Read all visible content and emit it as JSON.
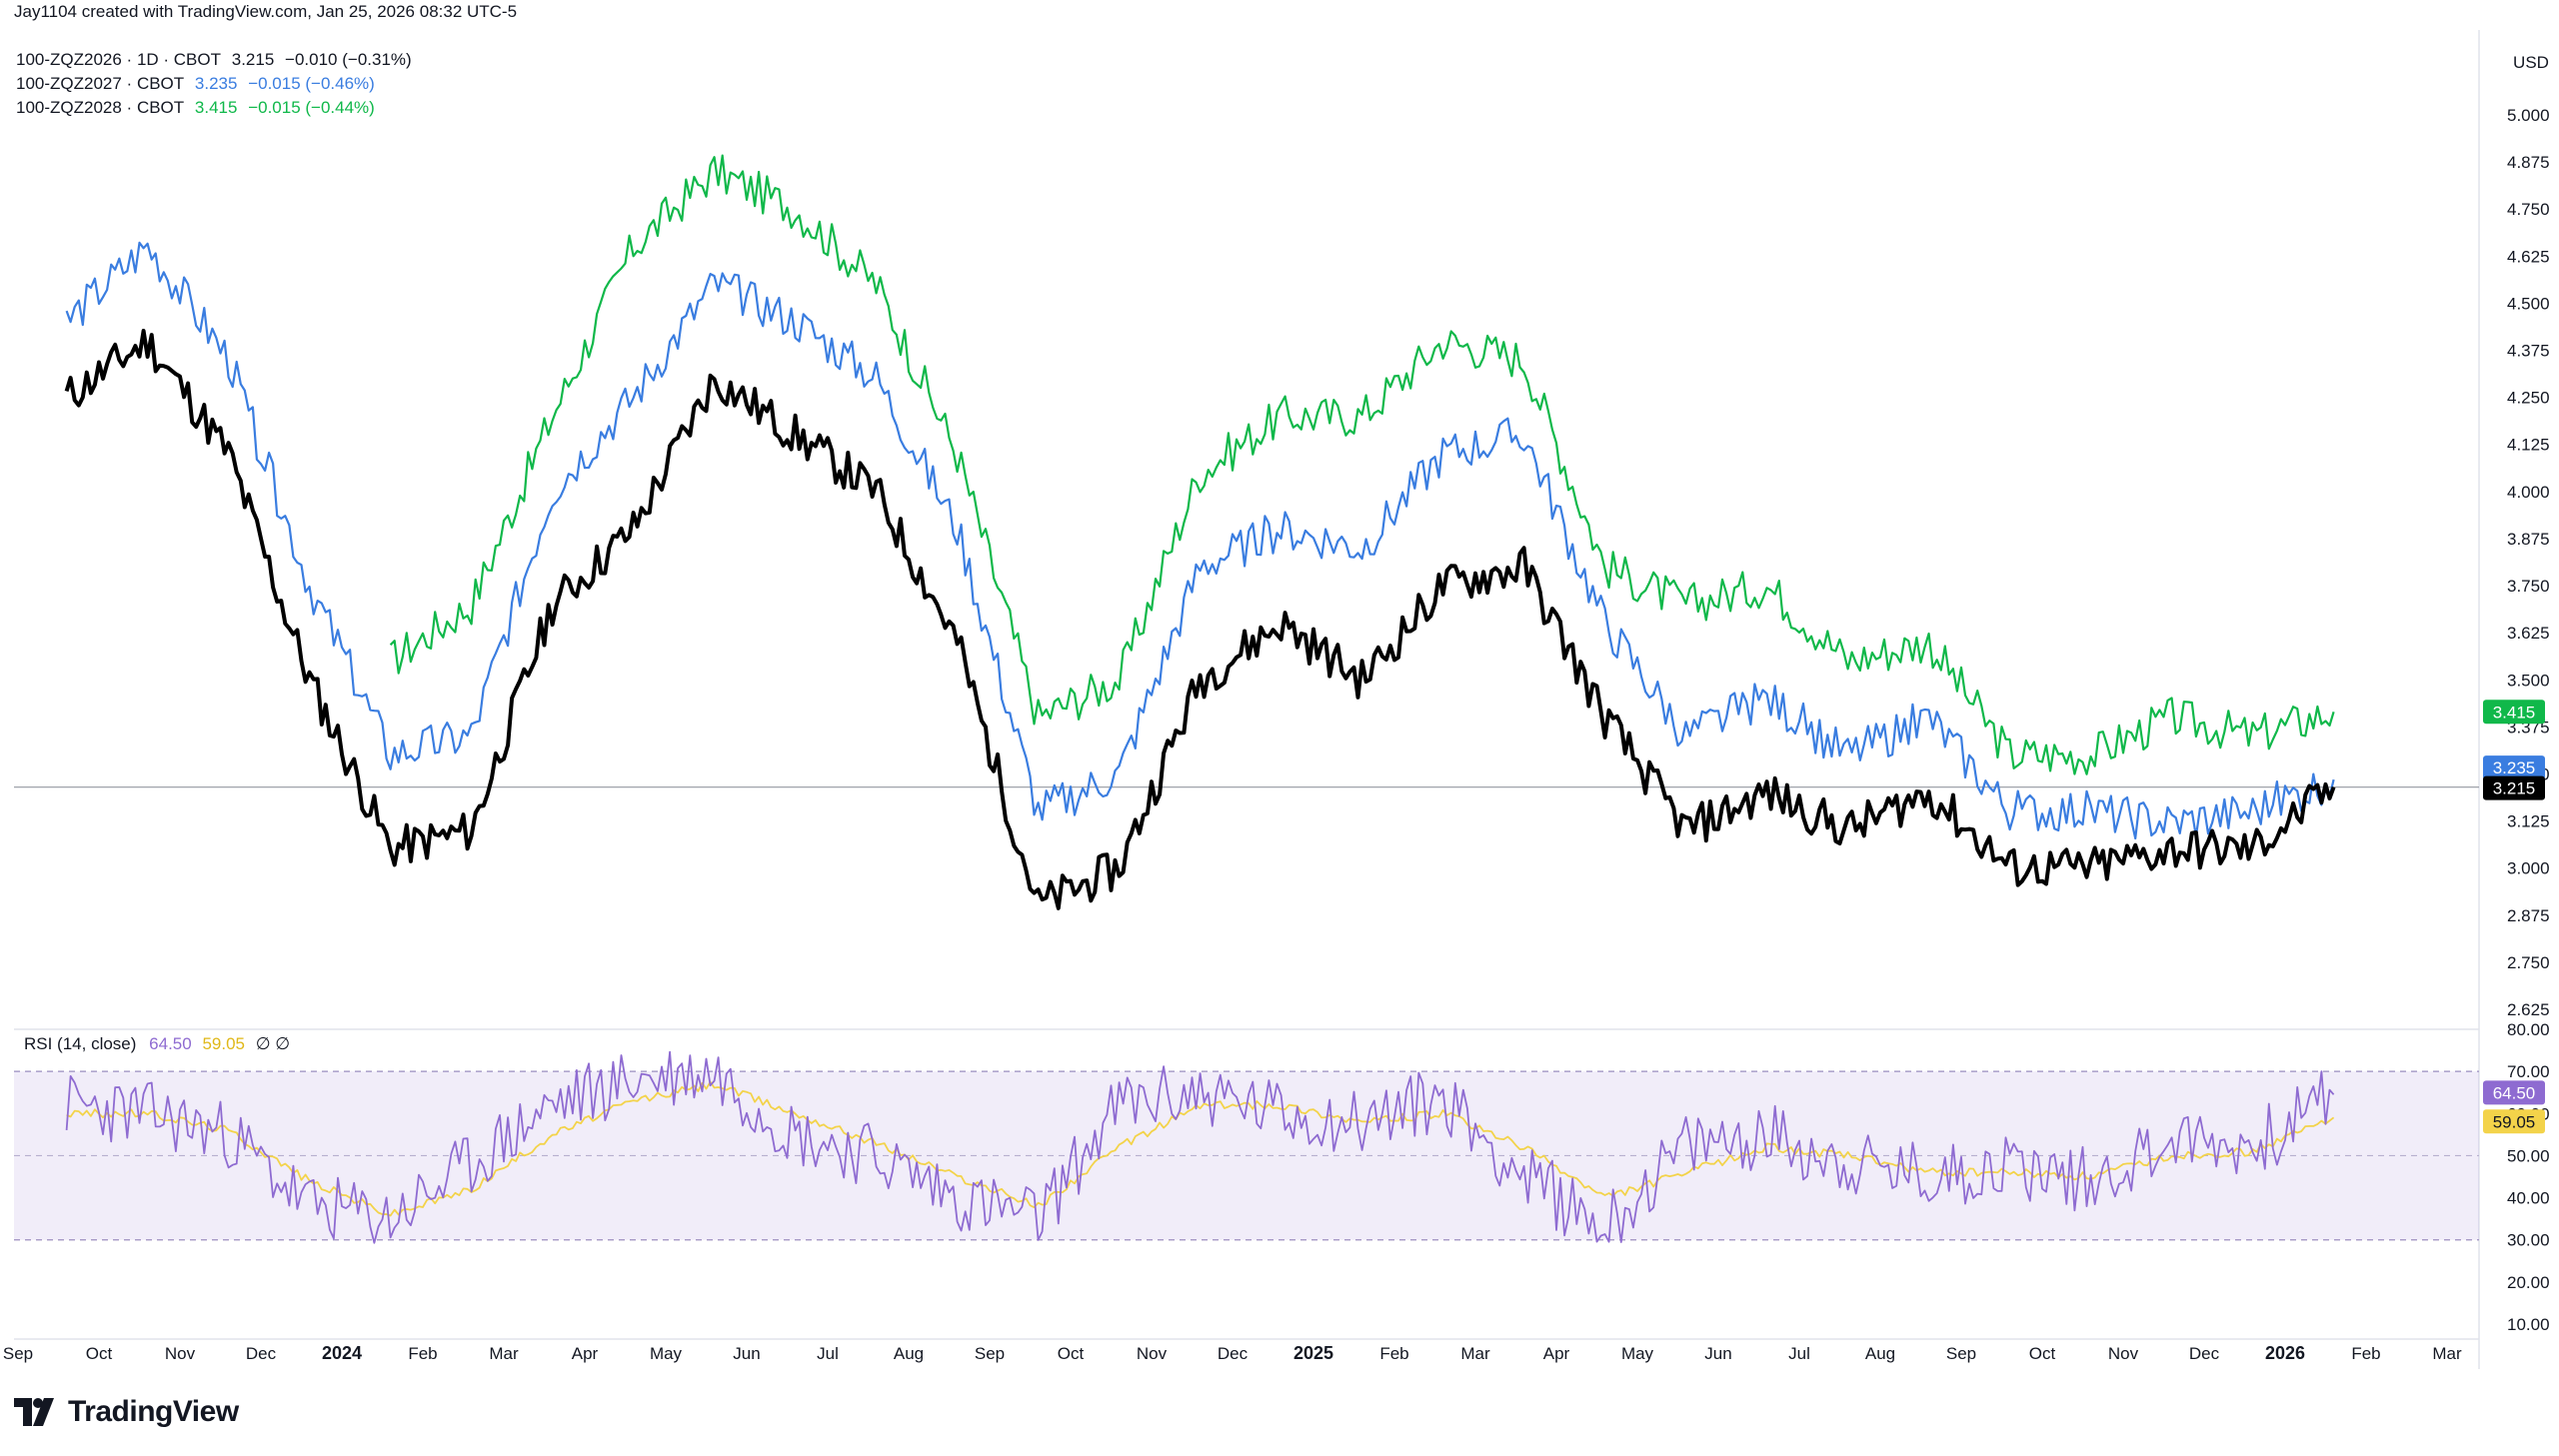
{
  "header": {
    "credit": "Jay1104 created with TradingView.com, Jan 25, 2026 08:32 UTC-5",
    "currency": "USD"
  },
  "legend": [
    {
      "symbol": "100-ZQZ2026 · 1D · CBOT",
      "last": "3.215",
      "change": "−0.010 (−0.31%)",
      "color": "#000000"
    },
    {
      "symbol": "100-ZQZ2027 · CBOT",
      "last": "3.235",
      "change": "−0.015 (−0.46%)",
      "color": "#3a7de0"
    },
    {
      "symbol": "100-ZQZ2028 · CBOT",
      "last": "3.415",
      "change": "−0.015 (−0.44%)",
      "color": "#10b84a"
    }
  ],
  "price_badges": [
    {
      "text": "3.415",
      "color": "#10b84a",
      "value": 3.415
    },
    {
      "text": "3.235",
      "color": "#3a7de0",
      "value": 3.235
    },
    {
      "text": "3.215",
      "color": "#000000",
      "value": 3.215
    }
  ],
  "rsi": {
    "label": "RSI (14, close)",
    "rsi_value": "64.50",
    "ma_value": "59.05",
    "rsi_color": "#8e6bd1",
    "ma_color": "#f3d34a",
    "extra": "∅ ∅",
    "upper_band": 70,
    "middle_band": 50,
    "lower_band": 30
  },
  "brand": {
    "name": "TradingView"
  },
  "chart_data": [
    {
      "type": "line",
      "title": "",
      "y_unit": "USD",
      "ylim": [
        2.625,
        5.0
      ],
      "y_ticks": [
        "5.000",
        "4.875",
        "4.750",
        "4.625",
        "4.500",
        "4.375",
        "4.250",
        "4.125",
        "4.000",
        "3.875",
        "3.750",
        "3.625",
        "3.500",
        "3.375",
        "3.250",
        "3.125",
        "3.000",
        "2.875",
        "2.750",
        "2.625"
      ],
      "x_ticks": [
        "Sep",
        "Oct",
        "Nov",
        "Dec",
        "2024",
        "Feb",
        "Mar",
        "Apr",
        "May",
        "Jun",
        "Jul",
        "Aug",
        "Sep",
        "Oct",
        "Nov",
        "Dec",
        "2025",
        "Feb",
        "Mar",
        "Apr",
        "May",
        "Jun",
        "Jul",
        "Aug",
        "Sep",
        "Oct",
        "Nov",
        "Dec",
        "2026",
        "Feb",
        "Mar"
      ],
      "x_ticks_bold": [
        "2024",
        "2025",
        "2026"
      ],
      "x": [
        "2023-09",
        "2023-10",
        "2023-11",
        "2023-12",
        "2024-01",
        "2024-02",
        "2024-03",
        "2024-04",
        "2024-05",
        "2024-06",
        "2024-07",
        "2024-08",
        "2024-09",
        "2024-10",
        "2024-11",
        "2024-12",
        "2025-01",
        "2025-02",
        "2025-03",
        "2025-04",
        "2025-05",
        "2025-06",
        "2025-07",
        "2025-08",
        "2025-09",
        "2025-10",
        "2025-11",
        "2025-12",
        "2026-01"
      ],
      "series": [
        {
          "name": "100-ZQZ2026",
          "color": "#000000",
          "values": [
            4.25,
            4.4,
            4.1,
            3.5,
            3.05,
            3.1,
            3.7,
            3.9,
            4.3,
            4.15,
            4.0,
            3.6,
            2.9,
            3.0,
            3.5,
            3.65,
            3.5,
            3.75,
            3.8,
            3.4,
            3.1,
            3.2,
            3.1,
            3.2,
            3.0,
            3.0,
            3.05,
            3.05,
            3.215
          ]
        },
        {
          "name": "100-ZQZ2027",
          "color": "#3a7de0",
          "values": [
            4.45,
            4.65,
            4.35,
            3.75,
            3.3,
            3.35,
            4.0,
            4.25,
            4.55,
            4.45,
            4.3,
            3.9,
            3.15,
            3.25,
            3.8,
            3.9,
            3.85,
            4.1,
            4.15,
            3.65,
            3.35,
            3.45,
            3.3,
            3.4,
            3.15,
            3.15,
            3.12,
            3.15,
            3.235
          ]
        },
        {
          "name": "100-ZQZ2028",
          "color": "#10b84a",
          "values": [
            null,
            null,
            null,
            null,
            3.55,
            3.7,
            4.2,
            4.65,
            4.85,
            4.75,
            4.55,
            4.1,
            3.4,
            3.5,
            4.05,
            4.2,
            4.2,
            4.4,
            4.35,
            3.8,
            3.7,
            3.75,
            3.55,
            3.6,
            3.3,
            3.3,
            3.4,
            3.35,
            3.415
          ]
        }
      ]
    },
    {
      "type": "line",
      "title": "RSI (14, close)",
      "ylim": [
        10,
        80
      ],
      "y_ticks": [
        "80.00",
        "70.00",
        "60.00",
        "50.00",
        "40.00",
        "30.00",
        "20.00",
        "10.00"
      ],
      "series": [
        {
          "name": "RSI",
          "color": "#8e6bd1",
          "values": [
            62,
            60,
            55,
            38,
            35,
            48,
            62,
            68,
            70,
            55,
            50,
            40,
            35,
            62,
            65,
            60,
            58,
            64,
            45,
            33,
            52,
            55,
            48,
            45,
            48,
            44,
            54,
            52,
            64.5
          ]
        },
        {
          "name": "MA",
          "color": "#f3d34a",
          "values": [
            60,
            60,
            56,
            44,
            36,
            42,
            55,
            63,
            67,
            60,
            53,
            45,
            38,
            52,
            62,
            62,
            58,
            60,
            52,
            40,
            46,
            52,
            50,
            46,
            46,
            45,
            50,
            51,
            59.05
          ]
        }
      ]
    }
  ]
}
